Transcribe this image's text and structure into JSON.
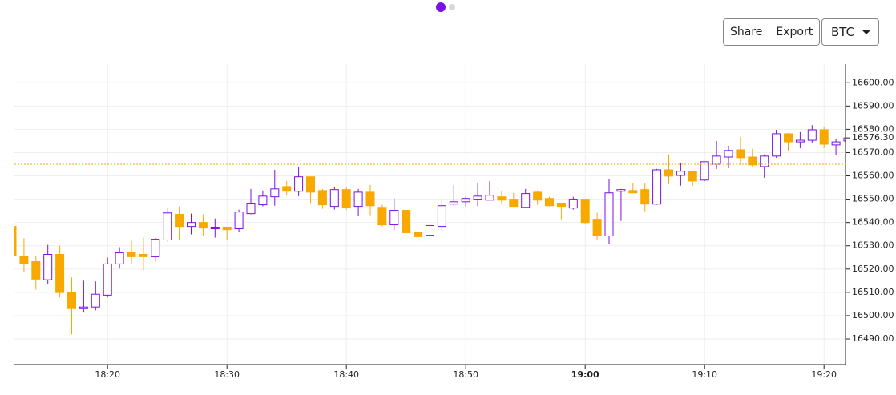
{
  "toolbar": {
    "buttons": [
      "Share",
      "Export"
    ],
    "symbol": "BTC"
  },
  "chart_data": {
    "type": "candlestick",
    "x": [
      "18:12",
      "18:13",
      "18:14",
      "18:15",
      "18:16",
      "18:17",
      "18:18",
      "18:19",
      "18:20",
      "18:21",
      "18:22",
      "18:23",
      "18:24",
      "18:25",
      "18:26",
      "18:27",
      "18:28",
      "18:29",
      "18:30",
      "18:31",
      "18:32",
      "18:33",
      "18:34",
      "18:35",
      "18:36",
      "18:37",
      "18:38",
      "18:39",
      "18:40",
      "18:41",
      "18:42",
      "18:43",
      "18:44",
      "18:45",
      "18:46",
      "18:47",
      "18:48",
      "18:49",
      "18:50",
      "18:51",
      "18:52",
      "18:53",
      "18:54",
      "18:55",
      "18:56",
      "18:57",
      "18:58",
      "18:59",
      "19:00",
      "19:01",
      "19:02",
      "19:03",
      "19:04",
      "19:05",
      "19:06",
      "19:07",
      "19:08",
      "19:09",
      "19:10",
      "19:11",
      "19:12",
      "19:13",
      "19:14",
      "19:15",
      "19:16",
      "19:17",
      "19:18",
      "19:19",
      "19:20",
      "19:21",
      "19:22"
    ],
    "open": [
      16538.3,
      16525.3,
      16523.2,
      16515.4,
      16526.3,
      16509.9,
      16503.0,
      16503.7,
      16508.8,
      16522.2,
      16527.0,
      16526.3,
      16525.3,
      16532.5,
      16543.5,
      16538.3,
      16540.0,
      16537.3,
      16538.0,
      16537.3,
      16543.8,
      16547.6,
      16551.0,
      16555.4,
      16553.4,
      16559.6,
      16553.7,
      16546.9,
      16554.1,
      16546.9,
      16553.0,
      16546.5,
      16539.0,
      16545.2,
      16535.6,
      16534.5,
      16538.3,
      16547.9,
      16548.9,
      16550.0,
      16549.6,
      16551.0,
      16550.0,
      16546.5,
      16553.0,
      16550.3,
      16548.3,
      16546.2,
      16550.0,
      16541.4,
      16534.2,
      16553.4,
      16553.7,
      16554.1,
      16547.9,
      16562.6,
      16560.2,
      16562.0,
      16558.2,
      16565.0,
      16568.1,
      16571.2,
      16568.1,
      16564.0,
      16568.5,
      16578.1,
      16574.6,
      16575.3,
      16579.8,
      16573.3,
      16575.0
    ],
    "high": [
      16538.5,
      16533.2,
      16525.6,
      16530.4,
      16530.1,
      16516.4,
      16515.0,
      16514.7,
      16524.9,
      16529.4,
      16532.1,
      16533.5,
      16533.5,
      16546.2,
      16546.9,
      16543.8,
      16543.5,
      16541.7,
      16538.0,
      16545.5,
      16554.4,
      16553.7,
      16562.6,
      16557.8,
      16563.7,
      16559.6,
      16554.4,
      16555.4,
      16555.1,
      16554.4,
      16556.1,
      16547.6,
      16550.3,
      16545.2,
      16535.6,
      16543.5,
      16550.0,
      16556.1,
      16551.0,
      16556.8,
      16557.8,
      16553.7,
      16552.7,
      16554.4,
      16553.7,
      16551.0,
      16548.3,
      16551.0,
      16550.0,
      16544.1,
      16558.5,
      16554.4,
      16556.8,
      16556.8,
      16563.0,
      16569.2,
      16565.7,
      16562.3,
      16566.1,
      16575.0,
      16572.9,
      16576.7,
      16571.6,
      16569.2,
      16579.8,
      16578.4,
      16578.8,
      16581.8,
      16581.2,
      16575.7,
      16576.3
    ],
    "low": [
      16525.0,
      16518.8,
      16511.2,
      16513.6,
      16507.8,
      16492.0,
      16501.3,
      16502.3,
      16507.8,
      16520.2,
      16522.2,
      16519.5,
      16523.2,
      16531.8,
      16532.5,
      16534.9,
      16534.2,
      16533.5,
      16532.5,
      16535.9,
      16543.5,
      16546.9,
      16547.2,
      16551.7,
      16551.3,
      16548.3,
      16545.9,
      16545.5,
      16545.5,
      16542.8,
      16543.1,
      16538.3,
      16536.6,
      16535.2,
      16531.5,
      16533.9,
      16536.9,
      16547.2,
      16546.9,
      16546.9,
      16549.6,
      16547.9,
      16546.9,
      16546.2,
      16547.6,
      16546.9,
      16541.4,
      16545.5,
      16539.3,
      16532.5,
      16530.8,
      16540.7,
      16552.7,
      16544.8,
      16547.6,
      16556.5,
      16555.8,
      16555.8,
      16557.8,
      16563.0,
      16563.3,
      16564.7,
      16564.0,
      16559.2,
      16567.8,
      16570.5,
      16571.9,
      16574.0,
      16571.9,
      16568.8,
      16575.0
    ],
    "close": [
      16525.6,
      16522.2,
      16515.7,
      16526.3,
      16509.9,
      16503.0,
      16503.7,
      16509.2,
      16522.2,
      16527.0,
      16525.3,
      16525.3,
      16532.8,
      16544.1,
      16538.3,
      16540.0,
      16537.6,
      16538.0,
      16536.9,
      16544.5,
      16548.3,
      16551.3,
      16554.4,
      16553.4,
      16559.6,
      16553.0,
      16547.6,
      16554.1,
      16546.5,
      16553.0,
      16547.2,
      16539.0,
      16545.2,
      16535.6,
      16533.9,
      16538.7,
      16547.2,
      16548.9,
      16550.3,
      16551.3,
      16551.7,
      16549.6,
      16546.9,
      16552.4,
      16549.6,
      16547.2,
      16546.9,
      16550.0,
      16540.0,
      16534.2,
      16552.7,
      16554.1,
      16552.7,
      16547.9,
      16562.6,
      16559.9,
      16562.0,
      16557.8,
      16566.1,
      16568.5,
      16570.9,
      16567.8,
      16564.7,
      16568.5,
      16578.1,
      16574.6,
      16575.3,
      16579.8,
      16573.6,
      16574.6,
      16576.3
    ],
    "up_color": "#7b10e4",
    "down_color": "#f8a900",
    "xlim": [
      "18:12",
      "19:22"
    ],
    "xticks": [
      "18:20",
      "18:30",
      "18:40",
      "18:50",
      "19:00",
      "19:10",
      "19:20"
    ],
    "xticks_bold": [
      false,
      false,
      false,
      false,
      true,
      false,
      false
    ],
    "ylim": [
      16479,
      16608
    ],
    "yticks": [
      {
        "value": 16490,
        "label": "16490.00"
      },
      {
        "value": 16500,
        "label": "16500.00"
      },
      {
        "value": 16510,
        "label": "16510.00"
      },
      {
        "value": 16520,
        "label": "16520.00"
      },
      {
        "value": 16530,
        "label": "16530.00"
      },
      {
        "value": 16540,
        "label": "16540.00"
      },
      {
        "value": 16550,
        "label": "16550.00"
      },
      {
        "value": 16560,
        "label": "16560.00"
      },
      {
        "value": 16570,
        "label": "16570.00"
      },
      {
        "value": 16580,
        "label": "16580.00"
      },
      {
        "value": 16590,
        "label": "16590.00"
      },
      {
        "value": 16600,
        "label": "16600.00"
      }
    ],
    "last_price": {
      "value": 16576.3,
      "label": "16576.30"
    },
    "reference_line": 16565,
    "grid": true
  }
}
